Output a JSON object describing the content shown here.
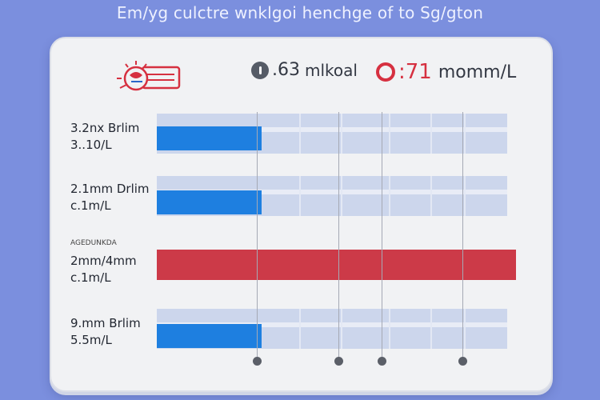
{
  "header": {
    "title": "Em/yg culctre wnklgoi henchge of to Sg/gton"
  },
  "stats": [
    {
      "value": ".63",
      "unit": "mlkoal",
      "icon": "info-dot-icon"
    },
    {
      "value": ":71",
      "unit": "momm/L",
      "icon": "record-ring-icon"
    }
  ],
  "rows": [
    {
      "line1": "3.2nx Brlim",
      "line2": "3..10/L",
      "caption": "",
      "level": 0.3,
      "highlight": false
    },
    {
      "line1": "2.1mm Drlim",
      "line2": "c.1m/L",
      "caption": "",
      "level": 0.3,
      "highlight": false
    },
    {
      "line1": "2mm/4mm",
      "line2": "c.1m/L",
      "caption": "AGEDUNKDA",
      "level": 1.0,
      "highlight": true
    },
    {
      "line1": "9.mm Brlim",
      "line2": "5.5m/L",
      "caption": "",
      "level": 0.3,
      "highlight": false
    }
  ],
  "colors": {
    "background": "#7b8fde",
    "fill_blue": "#1e7fe0",
    "fill_red": "#cc3a48",
    "accent_red": "#d63040"
  },
  "markers": [
    "marker-1",
    "marker-2",
    "marker-3",
    "marker-4"
  ]
}
